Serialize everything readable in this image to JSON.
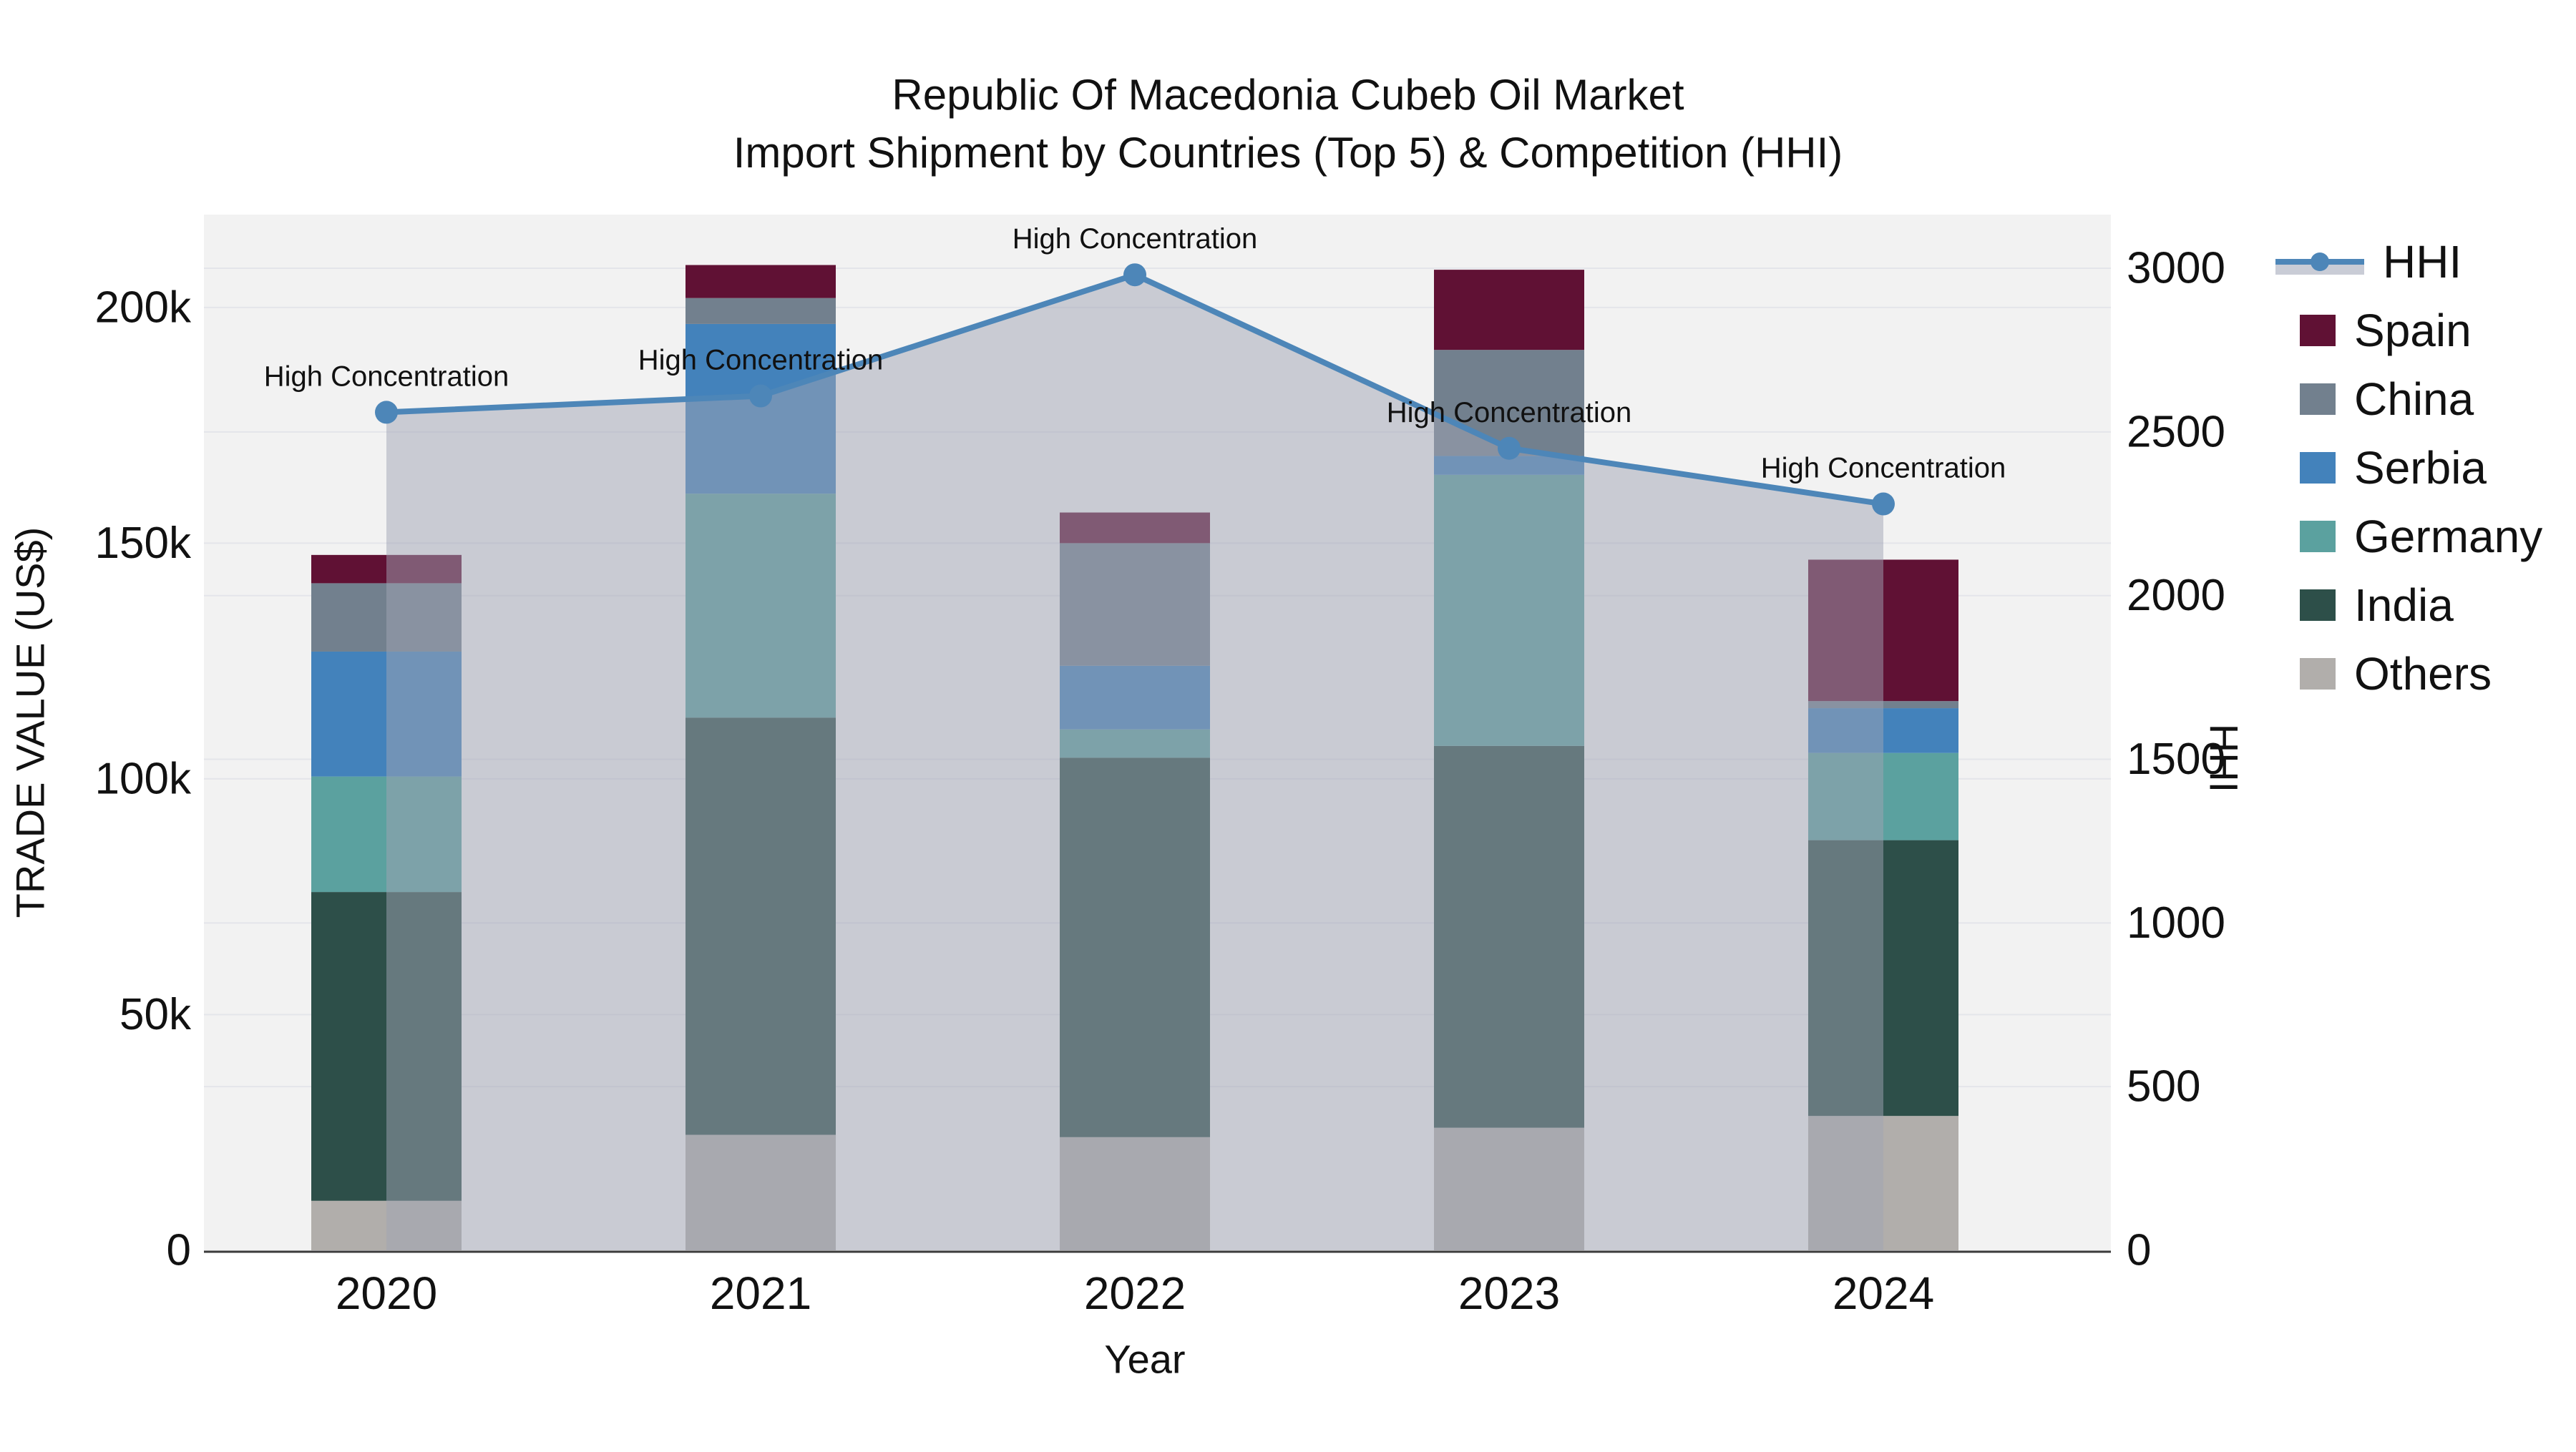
{
  "title": {
    "line1": "Republic Of Macedonia Cubeb Oil Market",
    "line2": "Import Shipment by Countries (Top 5) & Competition (HHI)"
  },
  "colors": {
    "figure_bg": "#ffffff",
    "plot_bg": "#f2f2f2",
    "grid": "#e4e5ea",
    "axis_line": "#3c3c3c",
    "text": "#111111",
    "hhi_line": "#4d86b8",
    "hhi_area_fill": "rgba(160,164,180,0.5)"
  },
  "chart_data": {
    "type": "bar+line",
    "title": "Republic Of Macedonia Cubeb Oil Market — Import Shipment by Countries (Top 5) & Competition (HHI)",
    "xlabel": "Year",
    "y1label": "TRADE VALUE (US$)",
    "y2label": "HHI",
    "categories": [
      "2020",
      "2021",
      "2022",
      "2023",
      "2024"
    ],
    "series": [
      {
        "name": "Others",
        "color": "#b1aeab",
        "values": [
          10500,
          24500,
          24000,
          26000,
          28500
        ]
      },
      {
        "name": "India",
        "color": "#2d4f49",
        "values": [
          65500,
          88500,
          80500,
          81000,
          58500
        ]
      },
      {
        "name": "Germany",
        "color": "#5ba19f",
        "values": [
          24500,
          47500,
          6000,
          57500,
          18500
        ]
      },
      {
        "name": "Serbia",
        "color": "#4382bb",
        "values": [
          26500,
          36000,
          13500,
          4000,
          9500
        ]
      },
      {
        "name": "China",
        "color": "#72808e",
        "values": [
          14500,
          5500,
          26000,
          22500,
          1500
        ]
      },
      {
        "name": "Spain",
        "color": "#601134",
        "values": [
          6000,
          7000,
          6500,
          17000,
          30000
        ]
      }
    ],
    "hhi": {
      "name": "HHI",
      "values": [
        2560,
        2610,
        2980,
        2450,
        2280
      ]
    },
    "annotations": [
      "High Concentration",
      "High Concentration",
      "High Concentration",
      "High Concentration",
      "High Concentration"
    ],
    "y1_ticks": [
      {
        "v": 0,
        "label": "0"
      },
      {
        "v": 50000,
        "label": "50k"
      },
      {
        "v": 100000,
        "label": "100k"
      },
      {
        "v": 150000,
        "label": "150k"
      },
      {
        "v": 200000,
        "label": "200k"
      }
    ],
    "y2_ticks": [
      {
        "v": 0,
        "label": "0"
      },
      {
        "v": 500,
        "label": "500"
      },
      {
        "v": 1000,
        "label": "1000"
      },
      {
        "v": 1500,
        "label": "1500"
      },
      {
        "v": 2000,
        "label": "2000"
      },
      {
        "v": 2500,
        "label": "2500"
      },
      {
        "v": 3000,
        "label": "3000"
      }
    ],
    "y1_range": [
      0,
      219700
    ],
    "y2_range": [
      0,
      3164
    ],
    "grid": true,
    "legend_position": "right"
  },
  "legend": {
    "items": [
      {
        "label": "HHI",
        "type": "line",
        "color": "#4d86b8",
        "fill": "#c9ccd6"
      },
      {
        "label": "Spain",
        "type": "swatch",
        "color": "#601134"
      },
      {
        "label": "China",
        "type": "swatch",
        "color": "#72808e"
      },
      {
        "label": "Serbia",
        "type": "swatch",
        "color": "#4382bb"
      },
      {
        "label": "Germany",
        "type": "swatch",
        "color": "#5ba19f"
      },
      {
        "label": "India",
        "type": "swatch",
        "color": "#2d4f49"
      },
      {
        "label": "Others",
        "type": "swatch",
        "color": "#b1aeab"
      }
    ]
  }
}
